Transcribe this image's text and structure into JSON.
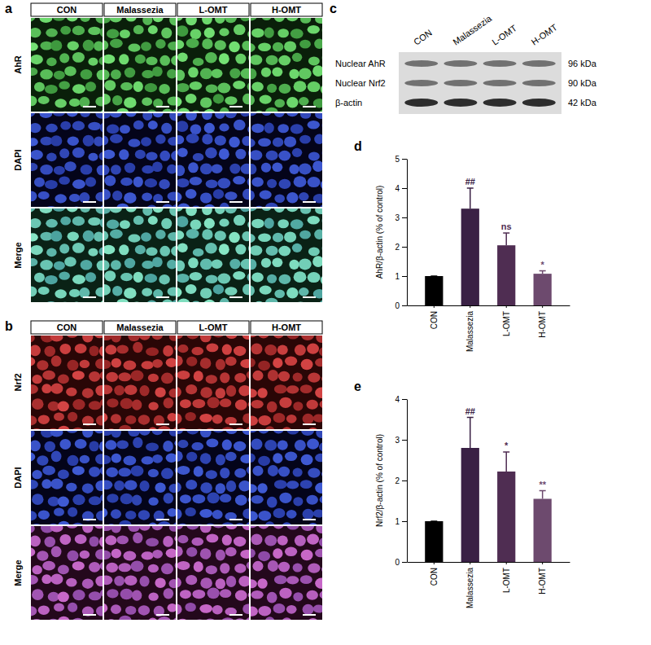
{
  "images": [
    {
      "panel": "a",
      "columns": [
        "CON",
        "Malassezia",
        "L-OMT",
        "H-OMT"
      ],
      "rows": [
        "AhR",
        "DAPI",
        "Merge"
      ]
    },
    {
      "panel": "b",
      "columns": [
        "CON",
        "Malassezia",
        "L-OMT",
        "H-OMT"
      ],
      "rows": [
        "Nrf2",
        "DAPI",
        "Merge"
      ]
    }
  ],
  "blot": {
    "panel": "c",
    "lanes": [
      "CON",
      "Malassezia",
      "L-OMT",
      "H-OMT"
    ],
    "bands": [
      {
        "label": "Nuclear AhR",
        "size": "96 kDa"
      },
      {
        "label": "Nuclear Nrf2",
        "size": "90 kDa"
      },
      {
        "label": "β-actin",
        "size": "42 kDa"
      }
    ]
  },
  "chart_data": [
    {
      "panel": "d",
      "type": "bar",
      "y_label": "AhR/β-actin (% of control)",
      "categories": [
        "CON",
        "Malassezia",
        "L-OMT",
        "H-OMT"
      ],
      "values": [
        1,
        3.3,
        2.05,
        1.08
      ],
      "errors": [
        0,
        0.7,
        0.42,
        0.1
      ],
      "significance": [
        null,
        "##",
        "ns",
        "*"
      ],
      "colors": [
        "#000000",
        "#3a2145",
        "#4f2d52",
        "#6d4a6e"
      ],
      "ylim": [
        0,
        5
      ],
      "yticks": [
        0,
        1,
        2,
        3,
        4,
        5
      ]
    },
    {
      "panel": "e",
      "type": "bar",
      "y_label": "Nrf2/β-actin (% of control)",
      "categories": [
        "CON",
        "Malassezia",
        "L-OMT",
        "H-OMT"
      ],
      "values": [
        1,
        2.8,
        2.22,
        1.55
      ],
      "errors": [
        0,
        0.75,
        0.48,
        0.2
      ],
      "significance": [
        null,
        "##",
        "*",
        "**"
      ],
      "colors": [
        "#000000",
        "#3a2145",
        "#4f2d52",
        "#6d4a6e"
      ],
      "ylim": [
        0,
        4
      ],
      "yticks": [
        0,
        1,
        2,
        3,
        4
      ]
    }
  ]
}
